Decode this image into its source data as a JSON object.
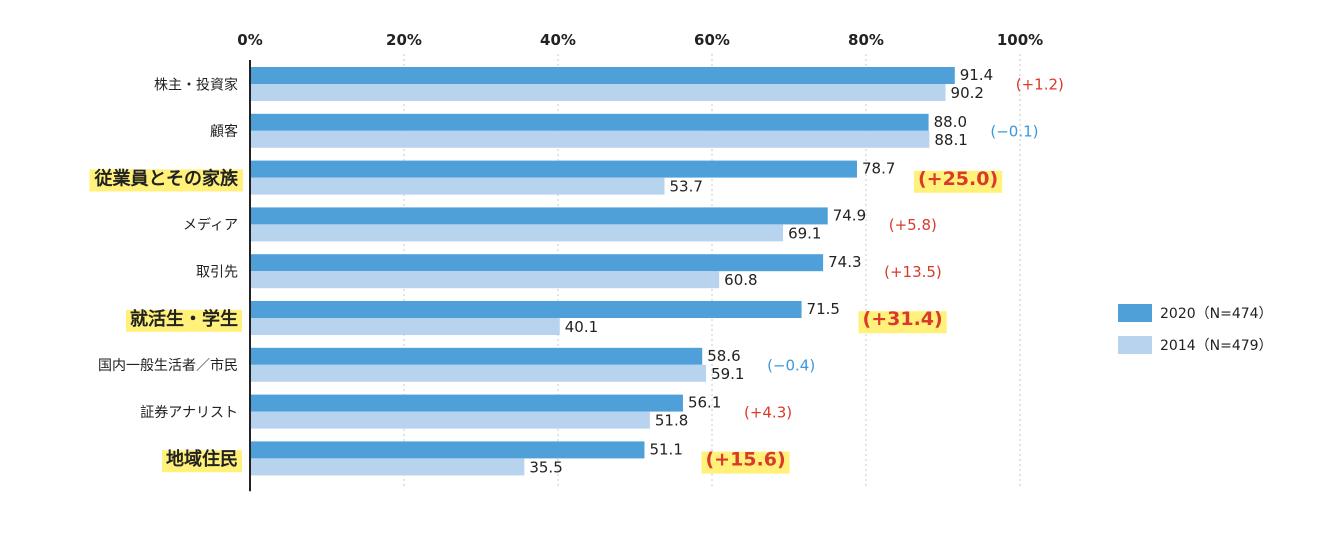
{
  "colors": {
    "series_2020": "#4f9fd9",
    "series_2014": "#b7d3ee",
    "diff_positive": "#d93a2b",
    "diff_negative": "#3a9ad9",
    "highlight": "#fff17a"
  },
  "legend": {
    "series_2020_label": "2020（N=474）",
    "series_2014_label": "2014（N=479）"
  },
  "chart_data": {
    "type": "bar",
    "orientation": "horizontal",
    "x_ticks": [
      "0%",
      "20%",
      "40%",
      "60%",
      "80%",
      "100%"
    ],
    "xlim": [
      0,
      100
    ],
    "grid": true,
    "legend_position": "right",
    "categories": [
      "株主・投資家",
      "顧客",
      "従業員とその家族",
      "メディア",
      "取引先",
      "就活生・学生",
      "国内一般生活者／市民",
      "証券アナリスト",
      "地域住民"
    ],
    "highlighted": [
      false,
      false,
      true,
      false,
      false,
      true,
      false,
      false,
      true
    ],
    "series": [
      {
        "name": "2020（N=474）",
        "values": [
          91.4,
          88.0,
          78.7,
          74.9,
          74.3,
          71.5,
          58.6,
          56.1,
          51.1
        ]
      },
      {
        "name": "2014（N=479）",
        "values": [
          90.2,
          88.1,
          53.7,
          69.1,
          60.8,
          40.1,
          59.1,
          51.8,
          35.5
        ]
      }
    ],
    "value_labels": {
      "series_2020": [
        "91.4",
        "88.0",
        "78.7",
        "74.9",
        "74.3",
        "71.5",
        "58.6",
        "56.1",
        "51.1"
      ],
      "series_2014": [
        "90.2",
        "88.1",
        "53.7",
        "69.1",
        "60.8",
        "40.1",
        "59.1",
        "51.8",
        "35.5"
      ]
    },
    "differences": [
      "(+1.2)",
      "(−0.1)",
      "(+25.0)",
      "(+5.8)",
      "(+13.5)",
      "(+31.4)",
      "(−0.4)",
      "(+4.3)",
      "(+15.6)"
    ]
  }
}
